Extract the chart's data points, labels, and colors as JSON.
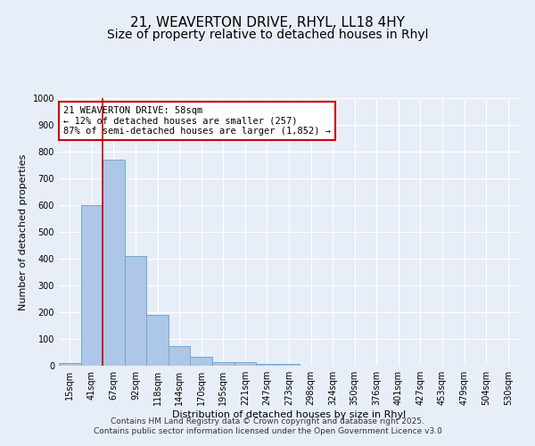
{
  "title_line1": "21, WEAVERTON DRIVE, RHYL, LL18 4HY",
  "title_line2": "Size of property relative to detached houses in Rhyl",
  "xlabel": "Distribution of detached houses by size in Rhyl",
  "ylabel": "Number of detached properties",
  "categories": [
    "15sqm",
    "41sqm",
    "67sqm",
    "92sqm",
    "118sqm",
    "144sqm",
    "170sqm",
    "195sqm",
    "221sqm",
    "247sqm",
    "273sqm",
    "298sqm",
    "324sqm",
    "350sqm",
    "376sqm",
    "401sqm",
    "427sqm",
    "453sqm",
    "479sqm",
    "504sqm",
    "530sqm"
  ],
  "values": [
    10,
    600,
    770,
    410,
    190,
    75,
    35,
    15,
    15,
    8,
    8,
    0,
    0,
    0,
    0,
    0,
    0,
    0,
    0,
    0,
    0
  ],
  "bar_color": "#aec6e8",
  "bar_edgecolor": "#6fa8d6",
  "vline_color": "#cc0000",
  "vline_x": 1.5,
  "annotation_text": "21 WEAVERTON DRIVE: 58sqm\n← 12% of detached houses are smaller (257)\n87% of semi-detached houses are larger (1,852) →",
  "annotation_box_facecolor": "white",
  "annotation_box_edgecolor": "#cc0000",
  "annotation_fontsize": 7.5,
  "ylim": [
    0,
    1000
  ],
  "yticks": [
    0,
    100,
    200,
    300,
    400,
    500,
    600,
    700,
    800,
    900,
    1000
  ],
  "background_color": "#e8eef8",
  "grid_color": "white",
  "title1_fontsize": 11,
  "title2_fontsize": 10,
  "axis_label_fontsize": 8,
  "tick_fontsize": 7,
  "footer_line1": "Contains HM Land Registry data © Crown copyright and database right 2025.",
  "footer_line2": "Contains public sector information licensed under the Open Government Licence v3.0",
  "footer_fontsize": 6.5
}
